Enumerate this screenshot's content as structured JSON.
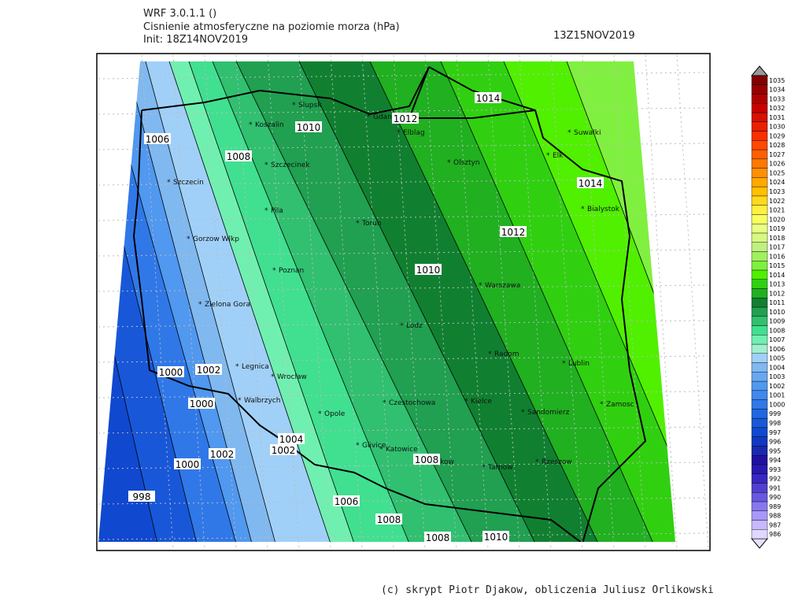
{
  "header": {
    "model": "WRF 3.0.1.1 ()",
    "title": "Cisnienie atmosferyczne na poziomie morza (hPa)",
    "init": "Init: 18Z14NOV2019",
    "valid": "13Z15NOV2019"
  },
  "map": {
    "cities": [
      "Slupsk",
      "Gdansk",
      "Koszalin",
      "Elblag",
      "Olsztyn",
      "Suwalki",
      "Elk",
      "Szczecinek",
      "Szczecin",
      "Pila",
      "Torun",
      "Bialystok",
      "Gorzow Wlkp",
      "Poznan",
      "Warszawa",
      "Zielona Gora",
      "Lodz",
      "Radom",
      "Lublin",
      "Legnica",
      "Wroclaw",
      "Walbrzych",
      "Opole",
      "Czestochowa",
      "Kielce",
      "Sandomierz",
      "Zamosc",
      "Glivice",
      "Katowice",
      "Krakow",
      "Tarnow",
      "Rzeszow"
    ],
    "contour_labels": [
      1006,
      1008,
      1010,
      1012,
      1014,
      1014,
      1012,
      1010,
      1000,
      1002,
      1000,
      1004,
      1002,
      1002,
      1000,
      998,
      1006,
      1008,
      1008,
      1008,
      1010
    ]
  },
  "colorbar": {
    "levels": [
      986,
      987,
      988,
      989,
      990,
      991,
      992,
      993,
      994,
      995,
      996,
      997,
      998,
      999,
      1000,
      1001,
      1002,
      1003,
      1004,
      1005,
      1006,
      1007,
      1008,
      1009,
      1010,
      1011,
      1012,
      1013,
      1014,
      1015,
      1016,
      1017,
      1018,
      1019,
      1020,
      1021,
      1022,
      1023,
      1024,
      1025,
      1026,
      1027,
      1028,
      1029,
      1030,
      1031,
      1032,
      1033,
      1034,
      1035
    ],
    "colors": [
      "#e0d8ff",
      "#c8b8ff",
      "#a898f8",
      "#8878f0",
      "#6858e0",
      "#5040d0",
      "#3828c0",
      "#2818b0",
      "#2010a0",
      "#1828b0",
      "#1038c0",
      "#1048d0",
      "#1858d8",
      "#2068e0",
      "#3078e8",
      "#4088f0",
      "#5098f0",
      "#68a8f0",
      "#80b8f0",
      "#a0d0f8",
      "#a0f0d0",
      "#70f0b0",
      "#40e090",
      "#30c070",
      "#20a050",
      "#108030",
      "#20b020",
      "#30d010",
      "#50f000",
      "#80f040",
      "#a0f060",
      "#c0f080",
      "#d8f880",
      "#e8ff80",
      "#f8ff60",
      "#fff040",
      "#ffd820",
      "#ffc000",
      "#ffa800",
      "#ff9000",
      "#ff7800",
      "#ff6000",
      "#ff4800",
      "#f83000",
      "#e82000",
      "#d81000",
      "#c80000",
      "#b00000",
      "#980000",
      "#800000"
    ]
  },
  "footer": "(c) skrypt Piotr Djakow, obliczenia Juliusz Orlikowski"
}
